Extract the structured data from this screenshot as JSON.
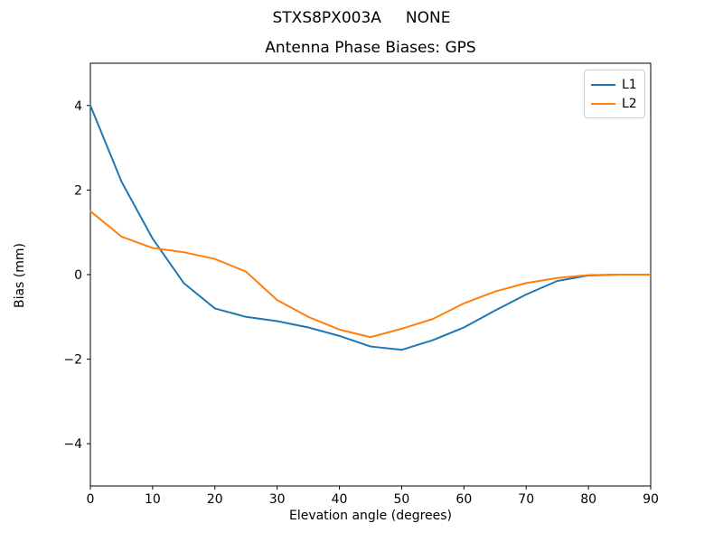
{
  "figure": {
    "suptitle": "STXS8PX003A     NONE",
    "background": "#ffffff",
    "axis_color": "#000000",
    "legend_border_color": "#cccccc"
  },
  "chart_data": {
    "type": "line",
    "title": "Antenna Phase Biases: GPS",
    "xlabel": "Elevation angle (degrees)",
    "ylabel": "Bias (mm)",
    "xlim": [
      0,
      90
    ],
    "ylim": [
      -5,
      5
    ],
    "grid": false,
    "legend_position": "upper right",
    "xticks": {
      "values": [
        0,
        10,
        20,
        30,
        40,
        50,
        60,
        70,
        80,
        90
      ],
      "labels": [
        "0",
        "10",
        "20",
        "30",
        "40",
        "50",
        "60",
        "70",
        "80",
        "90"
      ]
    },
    "yticks": {
      "values": [
        -4,
        -2,
        0,
        2,
        4
      ],
      "labels": [
        "−4",
        "−2",
        "0",
        "2",
        "4"
      ]
    },
    "x": [
      0,
      5,
      10,
      15,
      20,
      25,
      30,
      35,
      40,
      45,
      50,
      55,
      60,
      65,
      70,
      75,
      80,
      85,
      90
    ],
    "series": [
      {
        "name": "L1",
        "color": "#1f77b4",
        "values": [
          4.0,
          2.2,
          0.85,
          -0.2,
          -0.8,
          -1.0,
          -1.1,
          -1.25,
          -1.45,
          -1.7,
          -1.78,
          -1.55,
          -1.25,
          -0.85,
          -0.47,
          -0.15,
          -0.02,
          0.0,
          0.0
        ]
      },
      {
        "name": "L2",
        "color": "#ff7f0e",
        "values": [
          1.5,
          0.9,
          0.63,
          0.53,
          0.37,
          0.07,
          -0.6,
          -1.0,
          -1.3,
          -1.48,
          -1.28,
          -1.05,
          -0.68,
          -0.4,
          -0.2,
          -0.08,
          -0.01,
          0.0,
          0.0
        ]
      }
    ]
  }
}
